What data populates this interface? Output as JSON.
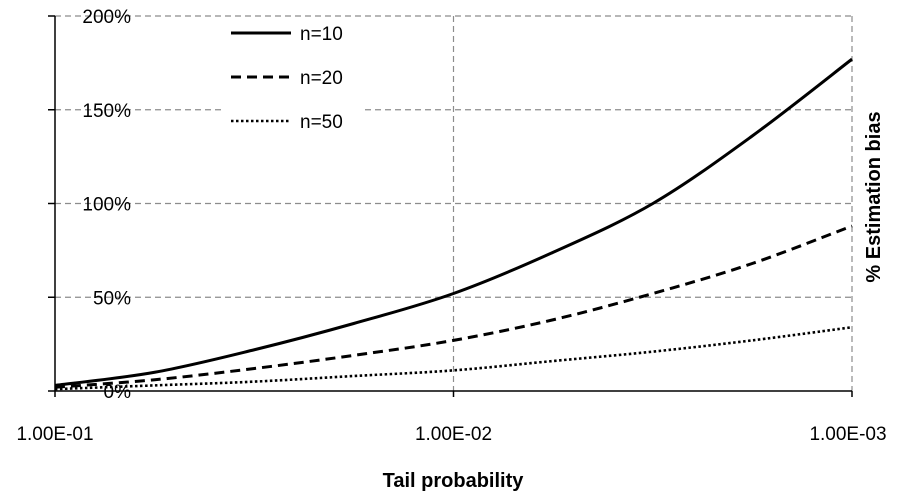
{
  "chart_data": {
    "type": "line",
    "title": "",
    "xlabel": "Tail probability",
    "ylabel": "% Estimation bias",
    "x_scale": "log",
    "x_reversed": true,
    "xlim": [
      0.1,
      0.001
    ],
    "ylim": [
      0,
      200
    ],
    "grid": true,
    "legend_position": "top-left",
    "x_ticks": [
      {
        "value": 0.1,
        "label": "1.00E-01"
      },
      {
        "value": 0.01,
        "label": "1.00E-02"
      },
      {
        "value": 0.001,
        "label": "1.00E-03"
      }
    ],
    "y_ticks": [
      {
        "value": 0,
        "label": "0%"
      },
      {
        "value": 50,
        "label": "50%"
      },
      {
        "value": 100,
        "label": "100%"
      },
      {
        "value": 150,
        "label": "150%"
      },
      {
        "value": 200,
        "label": "200%"
      }
    ],
    "x": [
      0.1,
      0.0562,
      0.0316,
      0.0178,
      0.01,
      0.00562,
      0.00316,
      0.00178,
      0.001
    ],
    "series": [
      {
        "name": "n=10",
        "dash": "solid",
        "values": [
          3,
          10,
          22,
          36,
          52,
          74,
          100,
          136,
          177
        ]
      },
      {
        "name": "n=20",
        "dash": "dashed",
        "values": [
          2,
          6,
          12,
          19,
          27,
          38,
          52,
          68,
          88
        ]
      },
      {
        "name": "n=50",
        "dash": "dotted",
        "values": [
          1,
          3,
          5,
          8,
          11,
          16,
          21,
          27,
          34
        ]
      }
    ]
  }
}
